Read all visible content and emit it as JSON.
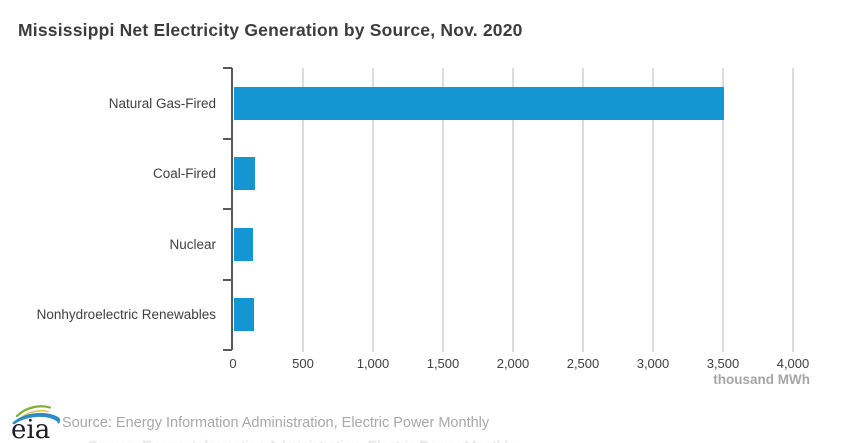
{
  "title": "Mississippi Net Electricity Generation by Source, Nov. 2020",
  "footer": {
    "logo_text": "eia",
    "source": "Source: Energy Information Administration, Electric Power Monthly"
  },
  "colors": {
    "bar": "#1496d3",
    "axis": "#595959",
    "gridline": "#dcdcdc",
    "title_text": "#3d3d3d",
    "label_text": "#404040",
    "muted_text": "#a6a6a6",
    "logo_blue": "#2e8bc4",
    "logo_green": "#7fae3e",
    "logo_yellow": "#d9c74f"
  },
  "chart_data": {
    "type": "bar",
    "orientation": "horizontal",
    "title": "Mississippi Net Electricity Generation by Source, Nov. 2020",
    "categories": [
      "Natural Gas-Fired",
      "Coal-Fired",
      "Nuclear",
      "Nonhydroelectric Renewables"
    ],
    "values": [
      3500,
      150,
      135,
      145
    ],
    "xlabel": "thousand MWh",
    "xlim": [
      0,
      4000
    ],
    "xticks": [
      0,
      500,
      1000,
      1500,
      2000,
      2500,
      3000,
      3500,
      4000
    ],
    "xtick_labels": [
      "0",
      "500",
      "1,000",
      "1,500",
      "2,000",
      "2,500",
      "3,000",
      "3,500",
      "4,000"
    ],
    "grid": true,
    "legend": false,
    "bar_color": "#1496d3"
  }
}
